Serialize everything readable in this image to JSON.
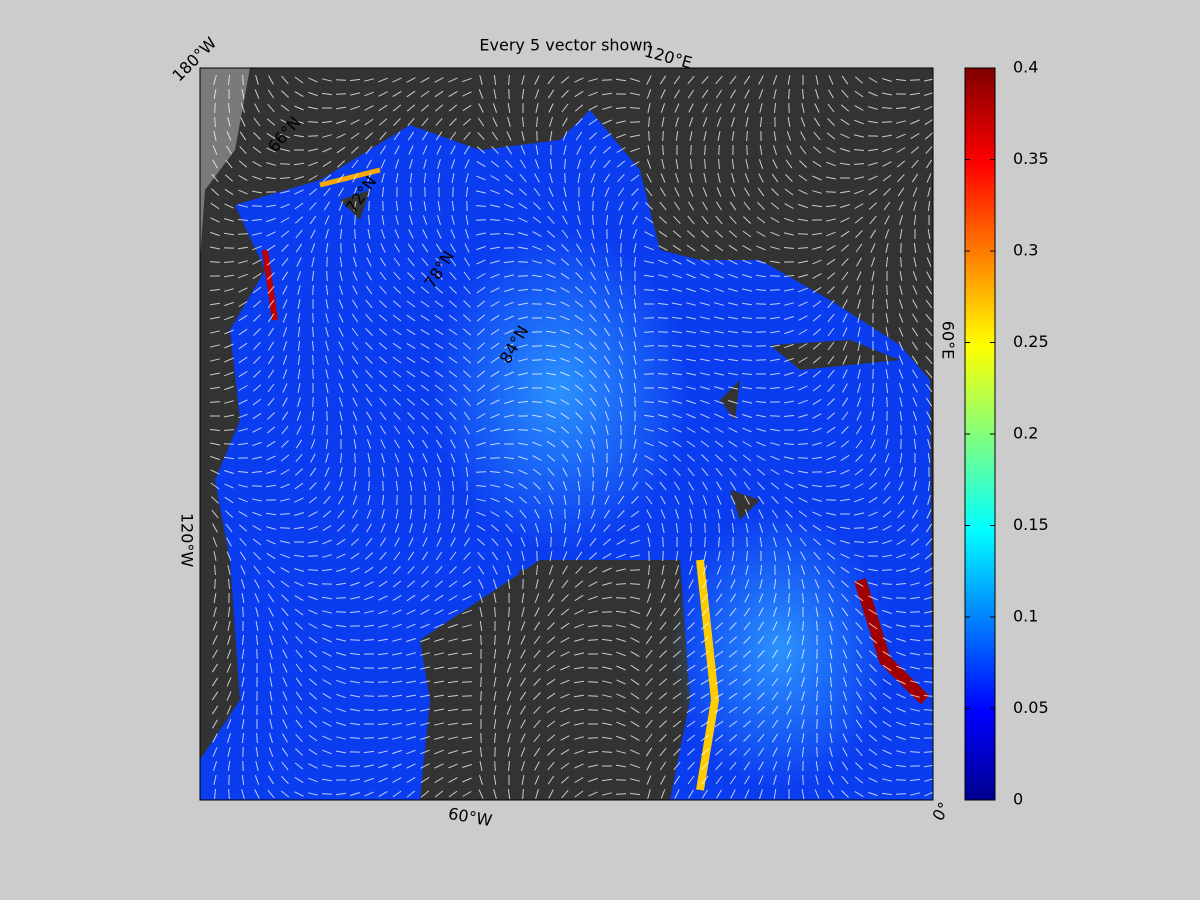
{
  "title": "Every 5 vector shown",
  "map": {
    "longitude_labels": [
      "180°W",
      "120°E",
      "60°E",
      "0°",
      "60°W",
      "120°W"
    ],
    "latitude_labels": [
      "66°N",
      "72°N",
      "78°N",
      "84°N"
    ]
  },
  "colorbar": {
    "lim": [
      0,
      0.4
    ],
    "ticks": [
      0,
      0.05,
      0.1,
      0.15,
      0.2,
      0.25,
      0.3,
      0.35,
      0.4
    ]
  }
}
